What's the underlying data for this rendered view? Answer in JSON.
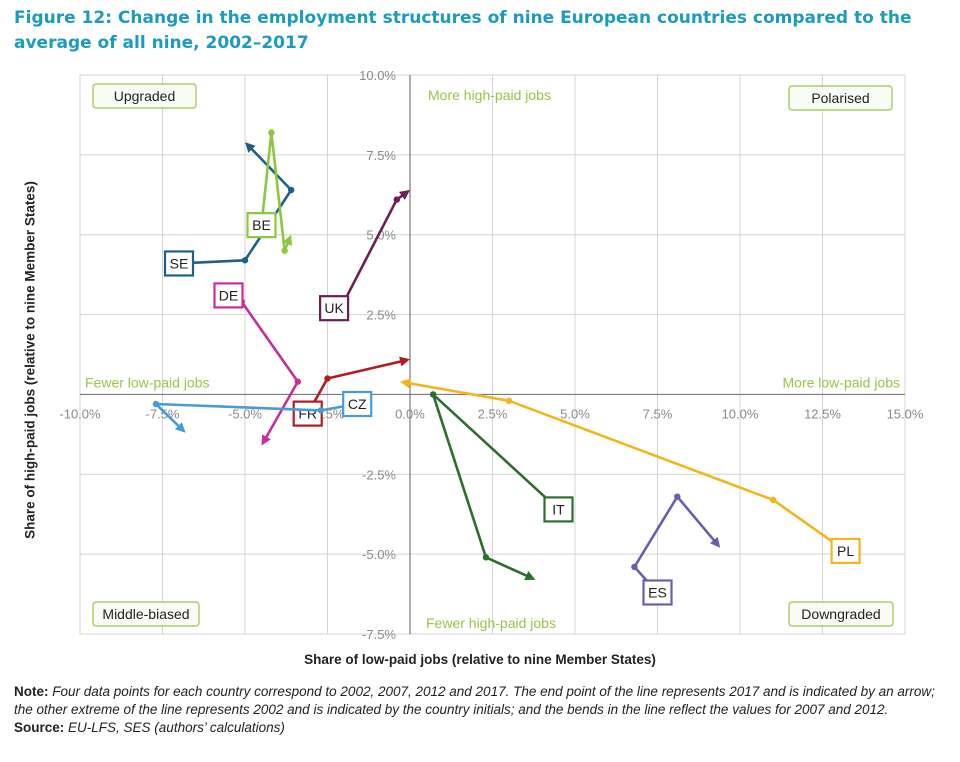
{
  "title": "Figure 12: Change in the employment structures of nine European countries compared to the average of all nine, 2002–2017",
  "note_label": "Note:",
  "note_text": "Four data points for each country correspond to 2002, 2007, 2012 and 2017. The end point of the line represents 2017 and is indicated by an arrow; the other extreme of the line represents 2002 and is indicated by the country initials; and the bends in the line reflect the values for 2007 and 2012.",
  "source_label": "Source:",
  "source_text": "EU-LFS, SES (authors’ calculations)",
  "chart_data": {
    "type": "scatter",
    "xlabel": "Share of low-paid jobs (relative to nine Member States)",
    "ylabel": "Share of high-paid jobs (relative to nine Member States)",
    "xlim": [
      -10,
      15
    ],
    "ylim": [
      -7.5,
      10
    ],
    "x_ticks": [
      -10,
      -7.5,
      -5,
      -2.5,
      0,
      2.5,
      5,
      7.5,
      10,
      12.5,
      15
    ],
    "y_ticks": [
      -7.5,
      -5,
      -2.5,
      2.5,
      5,
      7.5,
      10
    ],
    "x_tick_labels": [
      "-10.0%",
      "-7.5%",
      "-5.0%",
      "-2.5%",
      "0.0%",
      "2.5%",
      "5.0%",
      "7.5%",
      "10.0%",
      "12.5%",
      "15.0%"
    ],
    "y_tick_labels": [
      "-7.5%",
      "-5.0%",
      "-2.5%",
      "2.5%",
      "5.0%",
      "7.5%",
      "10.0%"
    ],
    "grid": true,
    "quadrant_labels": {
      "top_left": "Upgraded",
      "top_right": "Polarised",
      "bottom_left": "Middle-biased",
      "bottom_right": "Downgraded"
    },
    "axis_annotations": {
      "top": "More high-paid jobs",
      "bottom": "Fewer high-paid jobs",
      "left": "Fewer low-paid jobs",
      "right": "More low-paid jobs"
    },
    "series": [
      {
        "name": "SE",
        "color": "#1f5f8b",
        "x": [
          -7.0,
          -5.0,
          -3.6,
          -5.0
        ],
        "y": [
          4.1,
          4.2,
          6.4,
          7.9
        ]
      },
      {
        "name": "BE",
        "color": "#8dc63f",
        "x": [
          -4.5,
          -4.2,
          -3.8,
          -3.6
        ],
        "y": [
          5.3,
          8.2,
          4.5,
          5.0
        ]
      },
      {
        "name": "UK",
        "color": "#6d1e54",
        "x": [
          -2.3,
          -2.2,
          -0.4,
          0.0
        ],
        "y": [
          2.7,
          2.5,
          6.1,
          6.4
        ]
      },
      {
        "name": "DE",
        "color": "#c72d9e",
        "x": [
          -5.5,
          -5.1,
          -3.4,
          -4.5
        ],
        "y": [
          3.1,
          2.9,
          0.4,
          -1.6
        ]
      },
      {
        "name": "FR",
        "color": "#b01c24",
        "x": [
          -3.1,
          -3.1,
          -2.5,
          0.0
        ],
        "y": [
          -0.6,
          -0.6,
          0.5,
          1.1
        ]
      },
      {
        "name": "CZ",
        "color": "#4a9bd4",
        "x": [
          -1.6,
          -2.7,
          -7.7,
          -6.8
        ],
        "y": [
          -0.3,
          -0.5,
          -0.3,
          -1.2
        ]
      },
      {
        "name": "IT",
        "color": "#2d6e2c",
        "x": [
          4.5,
          0.7,
          2.3,
          3.8
        ],
        "y": [
          -3.6,
          0.0,
          -5.1,
          -5.8
        ]
      },
      {
        "name": "ES",
        "color": "#6b5fad",
        "x": [
          7.5,
          6.8,
          8.1,
          9.4
        ],
        "y": [
          -6.2,
          -5.4,
          -3.2,
          -4.8
        ]
      },
      {
        "name": "PL",
        "color": "#f5b41c",
        "x": [
          13.2,
          11.0,
          3.0,
          -0.3
        ],
        "y": [
          -4.9,
          -3.3,
          -0.2,
          0.4
        ]
      }
    ]
  }
}
